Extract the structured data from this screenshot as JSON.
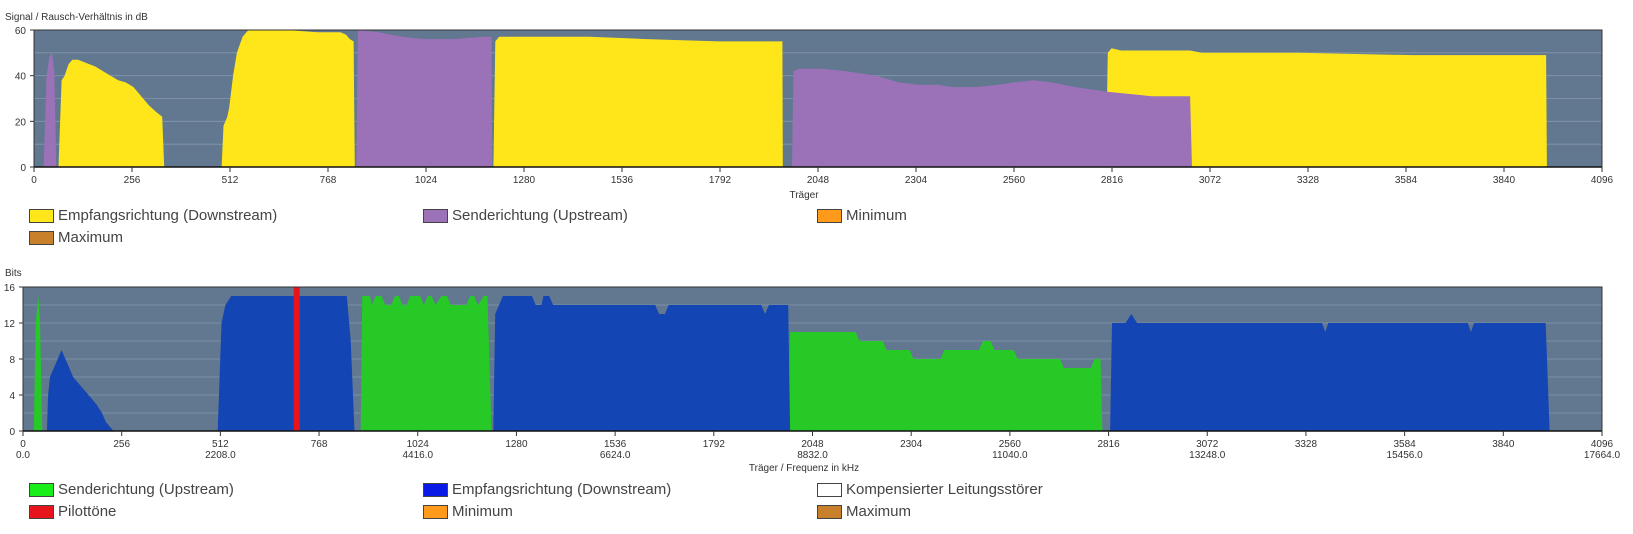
{
  "colors": {
    "plot_bg": "#627890",
    "downstream_snr": "#ffe61a",
    "upstream_snr": "#9b72b8",
    "minimum": "#ff9a1a",
    "maximum": "#c8802a",
    "upstream_bits": "#26c926",
    "downstream_bits": "#1445b5",
    "pilot": "#e8141c",
    "compensated": "#ffffff",
    "legend_upstream_bits": "#1aee1a",
    "legend_downstream_bits": "#0a1ae6",
    "legend_pilot": "#e8141c"
  },
  "chart_data": [
    {
      "type": "area",
      "title": "Signal / Rausch-Verhältnis in dB",
      "xlabel": "Träger",
      "ylabel": "Signal / Rausch-Verhältnis in dB",
      "xlim": [
        0,
        4096
      ],
      "ylim": [
        0,
        60
      ],
      "x_ticks": [
        "0",
        "256",
        "512",
        "768",
        "1024",
        "1280",
        "1536",
        "1792",
        "2048",
        "2304",
        "2560",
        "2816",
        "3072",
        "3328",
        "3584",
        "3840",
        "4096"
      ],
      "y_ticks": [
        "0",
        "20",
        "40",
        "60"
      ],
      "grid": true,
      "series": [
        {
          "name": "Empfangsrichtung (Downstream)",
          "color_key": "downstream_snr",
          "segments": [
            [
              [
                64,
                0
              ],
              [
                72,
                38
              ],
              [
                80,
                40
              ],
              [
                90,
                45
              ],
              [
                100,
                47
              ],
              [
                115,
                47
              ],
              [
                130,
                46
              ],
              [
                145,
                45
              ],
              [
                160,
                44
              ],
              [
                180,
                42
              ],
              [
                200,
                40
              ],
              [
                220,
                38
              ],
              [
                240,
                37
              ],
              [
                260,
                35
              ],
              [
                280,
                31
              ],
              [
                300,
                27
              ],
              [
                320,
                24
              ],
              [
                335,
                22
              ],
              [
                340,
                0
              ]
            ],
            [
              [
                490,
                0
              ],
              [
                495,
                18
              ],
              [
                505,
                22
              ],
              [
                510,
                26
              ],
              [
                520,
                40
              ],
              [
                530,
                50
              ],
              [
                545,
                57
              ],
              [
                560,
                60
              ],
              [
                660,
                60
              ],
              [
                740,
                59
              ],
              [
                800,
                59
              ],
              [
                815,
                58
              ],
              [
                825,
                56
              ],
              [
                835,
                55
              ],
              [
                838,
                0
              ]
            ],
            [
              [
                1200,
                0
              ],
              [
                1205,
                55
              ],
              [
                1215,
                57
              ],
              [
                1450,
                57
              ],
              [
                1600,
                56
              ],
              [
                1790,
                55
              ],
              [
                1955,
                55
              ],
              [
                1956,
                0
              ]
            ],
            [
              [
                2800,
                0
              ],
              [
                2805,
                50
              ],
              [
                2815,
                52
              ],
              [
                2840,
                51
              ],
              [
                2880,
                51
              ],
              [
                3020,
                51
              ],
              [
                3050,
                50
              ],
              [
                3300,
                50
              ],
              [
                3600,
                49
              ],
              [
                3800,
                49
              ],
              [
                3950,
                49
              ],
              [
                3952,
                0
              ]
            ]
          ]
        },
        {
          "name": "Senderichtung (Upstream)",
          "color_key": "upstream_snr",
          "segments": [
            [
              [
                25,
                0
              ],
              [
                33,
                40
              ],
              [
                40,
                48
              ],
              [
                47,
                50
              ],
              [
                53,
                42
              ],
              [
                58,
                0
              ]
            ],
            [
              [
                842,
                0
              ],
              [
                846,
                60
              ],
              [
                900,
                59
              ],
              [
                960,
                57
              ],
              [
                1020,
                56
              ],
              [
                1100,
                56
              ],
              [
                1170,
                57
              ],
              [
                1195,
                57
              ],
              [
                1197,
                0
              ]
            ],
            [
              [
                1980,
                0
              ],
              [
                1984,
                42
              ],
              [
                2000,
                43
              ],
              [
                2060,
                43
              ],
              [
                2120,
                42
              ],
              [
                2200,
                40
              ],
              [
                2260,
                37
              ],
              [
                2310,
                36
              ],
              [
                2360,
                36
              ],
              [
                2400,
                35
              ],
              [
                2460,
                35
              ],
              [
                2520,
                36
              ],
              [
                2560,
                37
              ],
              [
                2610,
                38
              ],
              [
                2660,
                37
              ],
              [
                2720,
                35
              ],
              [
                2760,
                34
              ],
              [
                2800,
                33
              ],
              [
                2860,
                32
              ],
              [
                2920,
                31
              ],
              [
                2980,
                31
              ],
              [
                3020,
                31
              ],
              [
                3025,
                0
              ]
            ]
          ]
        }
      ]
    },
    {
      "type": "area",
      "title": "Bits",
      "xlabel": "Träger / Frequenz in kHz",
      "ylabel": "Bits",
      "xlim": [
        0,
        4096
      ],
      "ylim": [
        0,
        16
      ],
      "x_ticks": [
        "0",
        "256",
        "512",
        "768",
        "1024",
        "1280",
        "1536",
        "1792",
        "2048",
        "2304",
        "2560",
        "2816",
        "3072",
        "3328",
        "3584",
        "3840",
        "4096"
      ],
      "freq_ticks": [
        {
          "carrier": 0,
          "label": "0.0"
        },
        {
          "carrier": 512,
          "label": "2208.0"
        },
        {
          "carrier": 1024,
          "label": "4416.0"
        },
        {
          "carrier": 1536,
          "label": "6624.0"
        },
        {
          "carrier": 2048,
          "label": "8832.0"
        },
        {
          "carrier": 2560,
          "label": "11040.0"
        },
        {
          "carrier": 3072,
          "label": "13248.0"
        },
        {
          "carrier": 3584,
          "label": "15456.0"
        },
        {
          "carrier": 4096,
          "label": "17664.0"
        }
      ],
      "y_ticks": [
        "0",
        "4",
        "8",
        "12",
        "16"
      ],
      "grid": true,
      "pilot_carrier": 710,
      "series": [
        {
          "name": "Senderichtung (Upstream)",
          "color_key": "upstream_bits",
          "segments": [
            [
              [
                28,
                0
              ],
              [
                33,
                12
              ],
              [
                40,
                15
              ],
              [
                44,
                12
              ],
              [
                50,
                0
              ]
            ],
            [
              [
                876,
                0
              ],
              [
                880,
                15
              ],
              [
                900,
                15
              ],
              [
                905,
                14
              ],
              [
                915,
                15
              ],
              [
                930,
                15
              ],
              [
                940,
                14
              ],
              [
                955,
                14
              ],
              [
                965,
                15
              ],
              [
                975,
                15
              ],
              [
                985,
                14
              ],
              [
                995,
                14
              ],
              [
                1005,
                15
              ],
              [
                1030,
                15
              ],
              [
                1040,
                14
              ],
              [
                1050,
                15
              ],
              [
                1060,
                15
              ],
              [
                1070,
                14
              ],
              [
                1085,
                15
              ],
              [
                1100,
                15
              ],
              [
                1110,
                14
              ],
              [
                1150,
                14
              ],
              [
                1160,
                15
              ],
              [
                1170,
                15
              ],
              [
                1180,
                14
              ],
              [
                1195,
                15
              ],
              [
                1205,
                15
              ],
              [
                1215,
                0
              ]
            ],
            [
              [
                1985,
                0
              ],
              [
                1990,
                11
              ],
              [
                2100,
                11
              ],
              [
                2160,
                11
              ],
              [
                2170,
                10
              ],
              [
                2230,
                10
              ],
              [
                2240,
                9
              ],
              [
                2300,
                9
              ],
              [
                2310,
                8
              ],
              [
                2380,
                8
              ],
              [
                2390,
                9
              ],
              [
                2480,
                9
              ],
              [
                2490,
                10
              ],
              [
                2510,
                10
              ],
              [
                2520,
                9
              ],
              [
                2570,
                9
              ],
              [
                2580,
                8
              ],
              [
                2690,
                8
              ],
              [
                2700,
                7
              ],
              [
                2770,
                7
              ],
              [
                2780,
                8
              ],
              [
                2795,
                8
              ],
              [
                2800,
                0
              ]
            ]
          ]
        },
        {
          "name": "Empfangsrichtung (Downstream)",
          "color_key": "downstream_bits",
          "segments": [
            [
              [
                62,
                0
              ],
              [
                65,
                4
              ],
              [
                70,
                6
              ],
              [
                80,
                7
              ],
              [
                90,
                8
              ],
              [
                100,
                9
              ],
              [
                110,
                8
              ],
              [
                120,
                7
              ],
              [
                130,
                6
              ],
              [
                150,
                5
              ],
              [
                170,
                4
              ],
              [
                190,
                3
              ],
              [
                205,
                2
              ],
              [
                215,
                1
              ],
              [
                235,
                0
              ]
            ],
            [
              [
                505,
                0
              ],
              [
                510,
                6
              ],
              [
                515,
                12
              ],
              [
                525,
                14
              ],
              [
                540,
                15
              ],
              [
                840,
                15
              ],
              [
                850,
                10
              ],
              [
                860,
                0
              ]
            ],
            [
              [
                1220,
                0
              ],
              [
                1225,
                13
              ],
              [
                1235,
                14
              ],
              [
                1245,
                15
              ],
              [
                1320,
                15
              ],
              [
                1330,
                14
              ],
              [
                1345,
                14
              ],
              [
                1350,
                15
              ],
              [
                1365,
                15
              ],
              [
                1375,
                14
              ],
              [
                1470,
                14
              ],
              [
                1480,
                14
              ],
              [
                1640,
                14
              ],
              [
                1650,
                13
              ],
              [
                1665,
                13
              ],
              [
                1675,
                14
              ],
              [
                1915,
                14
              ],
              [
                1925,
                13
              ],
              [
                1935,
                14
              ],
              [
                1985,
                14
              ],
              [
                1990,
                0
              ]
            ],
            [
              [
                2820,
                0
              ],
              [
                2825,
                12
              ],
              [
                2860,
                12
              ],
              [
                2875,
                13
              ],
              [
                2890,
                12
              ],
              [
                3370,
                12
              ],
              [
                3378,
                11
              ],
              [
                3386,
                12
              ],
              [
                3748,
                12
              ],
              [
                3756,
                11
              ],
              [
                3764,
                12
              ],
              [
                3950,
                12
              ],
              [
                3960,
                0
              ]
            ]
          ]
        }
      ]
    }
  ],
  "legend1": [
    {
      "label": "Empfangsrichtung (Downstream)",
      "color_key": "downstream_snr"
    },
    {
      "label": "Senderichtung (Upstream)",
      "color_key": "upstream_snr"
    },
    {
      "label": "Minimum",
      "color_key": "minimum"
    },
    {
      "label": "Maximum",
      "color_key": "maximum"
    }
  ],
  "legend2": [
    {
      "label": "Senderichtung (Upstream)",
      "color_key": "legend_upstream_bits"
    },
    {
      "label": "Empfangsrichtung (Downstream)",
      "color_key": "legend_downstream_bits"
    },
    {
      "label": "Kompensierter Leitungsstörer",
      "color_key": "compensated"
    },
    {
      "label": "Pilottöne",
      "color_key": "legend_pilot"
    },
    {
      "label": "Minimum",
      "color_key": "minimum"
    },
    {
      "label": "Maximum",
      "color_key": "maximum"
    }
  ]
}
